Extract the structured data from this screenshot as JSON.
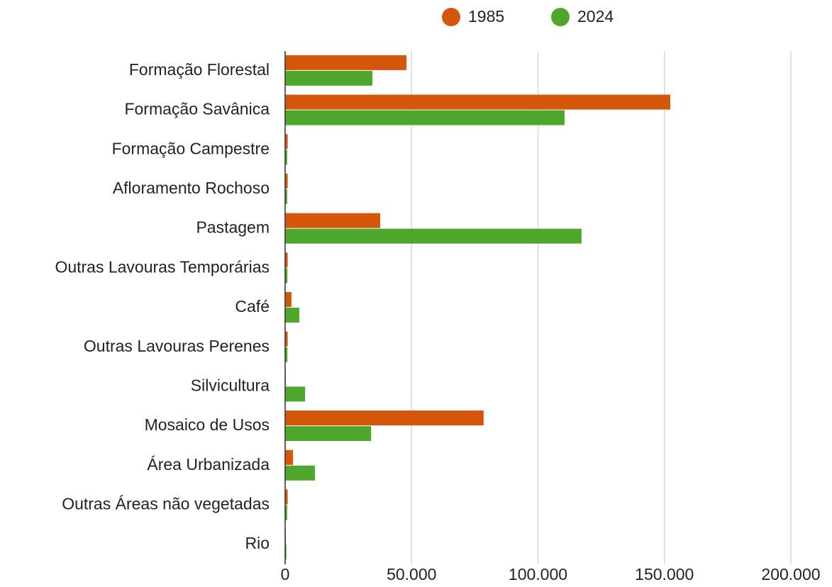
{
  "chart_data": {
    "type": "bar",
    "orientation": "horizontal",
    "categories": [
      "Formação Florestal",
      "Formação Savânica",
      "Formação Campestre",
      "Afloramento Rochoso",
      "Pastagem",
      "Outras Lavouras Temporárias",
      "Café",
      "Outras Lavouras Perenes",
      "Silvicultura",
      "Mosaico de Usos",
      "Área Urbanizada",
      "Outras Áreas não vegetadas",
      "Rio"
    ],
    "series": [
      {
        "name": "1985",
        "color": "#d4560a",
        "values": [
          48000,
          152300,
          1000,
          1000,
          37600,
          1000,
          2500,
          1000,
          200,
          78500,
          3100,
          1000,
          300
        ]
      },
      {
        "name": "2024",
        "color": "#4fa62c",
        "values": [
          34500,
          110500,
          800,
          800,
          117200,
          900,
          5600,
          900,
          7900,
          34000,
          11800,
          800,
          500
        ]
      }
    ],
    "xlim": [
      0,
      200000
    ],
    "xticks": [
      0,
      {
        "value": 50000,
        "label": "50.000"
      },
      {
        "value": 100000,
        "label": "100.000"
      },
      {
        "value": 150000,
        "label": "150.000"
      },
      {
        "value": 200000,
        "label": "200.000"
      }
    ],
    "grid": true,
    "legend": "top"
  }
}
